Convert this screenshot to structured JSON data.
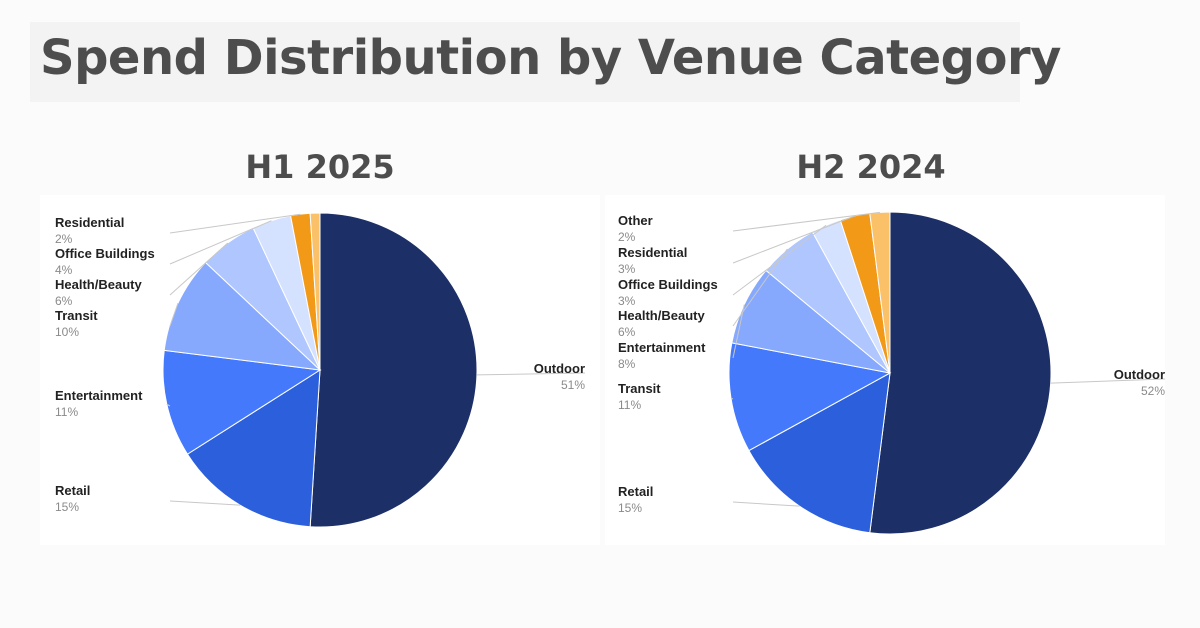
{
  "title": "Spend Distribution by Venue Category",
  "chart_data": [
    {
      "type": "pie",
      "title": "H1 2025",
      "slices": [
        {
          "label": "Outdoor",
          "value": 51,
          "pct": "51%",
          "color": "#1c2f66"
        },
        {
          "label": "Retail",
          "value": 15,
          "pct": "15%",
          "color": "#2c5fdc"
        },
        {
          "label": "Entertainment",
          "value": 11,
          "pct": "11%",
          "color": "#4479fc"
        },
        {
          "label": "Transit",
          "value": 10,
          "pct": "10%",
          "color": "#86a9fd"
        },
        {
          "label": "Health/Beauty",
          "value": 6,
          "pct": "6%",
          "color": "#afc6fe"
        },
        {
          "label": "Office Buildings",
          "value": 4,
          "pct": "4%",
          "color": "#d4e1ff"
        },
        {
          "label": "Residential",
          "value": 2,
          "pct": "2%",
          "color": "#f29a18"
        },
        {
          "label": "",
          "value": 1,
          "pct": "",
          "color": "#fbc168"
        }
      ]
    },
    {
      "type": "pie",
      "title": "H2 2024",
      "slices": [
        {
          "label": "Outdoor",
          "value": 52,
          "pct": "52%",
          "color": "#1c2f66"
        },
        {
          "label": "Retail",
          "value": 15,
          "pct": "15%",
          "color": "#2c5fdc"
        },
        {
          "label": "Transit",
          "value": 11,
          "pct": "11%",
          "color": "#4479fc"
        },
        {
          "label": "Entertainment",
          "value": 8,
          "pct": "8%",
          "color": "#86a9fd"
        },
        {
          "label": "Health/Beauty",
          "value": 6,
          "pct": "6%",
          "color": "#afc6fe"
        },
        {
          "label": "Office Buildings",
          "value": 3,
          "pct": "3%",
          "color": "#d4e1ff"
        },
        {
          "label": "Residential",
          "value": 3,
          "pct": "3%",
          "color": "#f29a18"
        },
        {
          "label": "Other",
          "value": 2,
          "pct": "2%",
          "color": "#fbc168"
        }
      ]
    }
  ]
}
